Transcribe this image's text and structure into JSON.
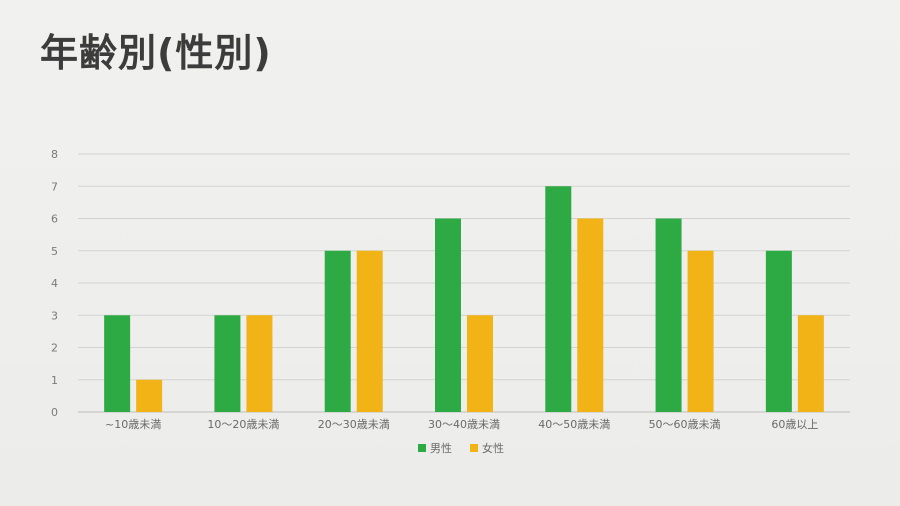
{
  "title": "年齢別(性別)",
  "chart_data": {
    "type": "bar",
    "categories": [
      "~10歳未満",
      "10～20歳未満",
      "20～30歳未満",
      "30～40歳未満",
      "40～50歳未満",
      "50～60歳未満",
      "60歳以上"
    ],
    "series": [
      {
        "name": "男性",
        "color": "#2eaa45",
        "values": [
          3,
          3,
          5,
          6,
          7,
          6,
          5
        ]
      },
      {
        "name": "女性",
        "color": "#f2b316",
        "values": [
          1,
          3,
          5,
          3,
          6,
          5,
          3
        ]
      }
    ],
    "ylim": [
      0,
      8
    ],
    "yticks": [
      0,
      1,
      2,
      3,
      4,
      5,
      6,
      7,
      8
    ],
    "grid": true,
    "legend": "bottom"
  }
}
